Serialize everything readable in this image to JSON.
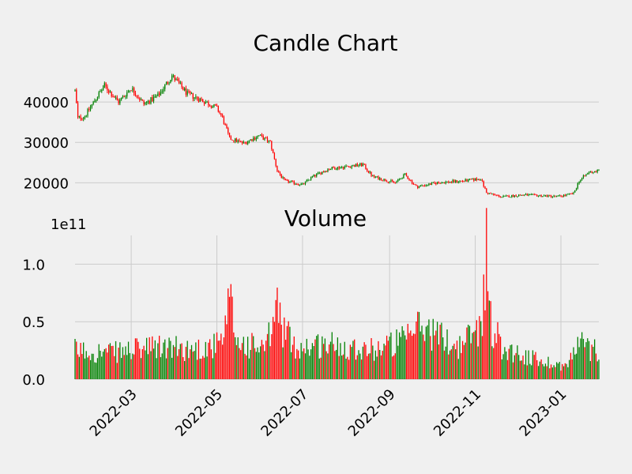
{
  "chart_data": [
    {
      "type": "candlestick",
      "title": "Candle Chart",
      "x_range": [
        "2022-01-20",
        "2023-01-28"
      ],
      "ylim": [
        14000,
        50000
      ],
      "yticks": [
        20000,
        30000,
        40000
      ],
      "ytick_labels": [
        "20000",
        "30000",
        "40000"
      ],
      "grid": "horizontal",
      "colors": {
        "up": "#008000",
        "down": "#ff0000"
      },
      "ohlc_points": [
        {
          "date": "2022-01-20",
          "value": 43000
        },
        {
          "date": "2022-01-22",
          "value": 36000
        },
        {
          "date": "2022-01-27",
          "value": 36500
        },
        {
          "date": "2022-02-05",
          "value": 41500
        },
        {
          "date": "2022-02-10",
          "value": 44000
        },
        {
          "date": "2022-02-20",
          "value": 40000
        },
        {
          "date": "2022-03-01",
          "value": 43500
        },
        {
          "date": "2022-03-10",
          "value": 39500
        },
        {
          "date": "2022-03-20",
          "value": 41500
        },
        {
          "date": "2022-03-30",
          "value": 46500
        },
        {
          "date": "2022-04-10",
          "value": 42000
        },
        {
          "date": "2022-04-20",
          "value": 40500
        },
        {
          "date": "2022-05-01",
          "value": 38500
        },
        {
          "date": "2022-05-05",
          "value": 36000
        },
        {
          "date": "2022-05-10",
          "value": 31000
        },
        {
          "date": "2022-05-20",
          "value": 29800
        },
        {
          "date": "2022-05-31",
          "value": 31700
        },
        {
          "date": "2022-06-08",
          "value": 30000
        },
        {
          "date": "2022-06-13",
          "value": 23000
        },
        {
          "date": "2022-06-18",
          "value": 20500
        },
        {
          "date": "2022-07-01",
          "value": 19500
        },
        {
          "date": "2022-07-08",
          "value": 21500
        },
        {
          "date": "2022-07-20",
          "value": 23500
        },
        {
          "date": "2022-08-13",
          "value": 24500
        },
        {
          "date": "2022-08-20",
          "value": 21500
        },
        {
          "date": "2022-09-05",
          "value": 20000
        },
        {
          "date": "2022-09-12",
          "value": 22000
        },
        {
          "date": "2022-09-20",
          "value": 19000
        },
        {
          "date": "2022-10-05",
          "value": 20000
        },
        {
          "date": "2022-10-25",
          "value": 20500
        },
        {
          "date": "2022-11-05",
          "value": 21000
        },
        {
          "date": "2022-11-09",
          "value": 17500
        },
        {
          "date": "2022-11-20",
          "value": 16500
        },
        {
          "date": "2022-12-05",
          "value": 17000
        },
        {
          "date": "2022-12-30",
          "value": 16600
        },
        {
          "date": "2023-01-10",
          "value": 17300
        },
        {
          "date": "2023-01-14",
          "value": 20500
        },
        {
          "date": "2023-01-21",
          "value": 22600
        },
        {
          "date": "2023-01-28",
          "value": 23000
        }
      ]
    },
    {
      "type": "bar",
      "title": "Volume",
      "scale_label": "1e11",
      "ylim": [
        0,
        1.25
      ],
      "yticks": [
        0,
        0.5,
        1.0
      ],
      "ytick_labels": [
        "0.0",
        "0.5",
        "1.0"
      ],
      "xtick_dates": [
        "2022-03-01",
        "2022-05-01",
        "2022-07-01",
        "2022-09-01",
        "2022-11-01",
        "2023-01-01"
      ],
      "xtick_labels": [
        "2022-03",
        "2022-05",
        "2022-07",
        "2022-09",
        "2022-11",
        "2023-01"
      ],
      "grid": "both",
      "colors": {
        "up": "#008000",
        "down": "#ff0000"
      },
      "volume_points": [
        {
          "date": "2022-01-20",
          "value": 0.27
        },
        {
          "date": "2022-02-15",
          "value": 0.25
        },
        {
          "date": "2022-03-20",
          "value": 0.3
        },
        {
          "date": "2022-04-15",
          "value": 0.28
        },
        {
          "date": "2022-05-05",
          "value": 0.33
        },
        {
          "date": "2022-05-09",
          "value": 0.62
        },
        {
          "date": "2022-05-11",
          "value": 0.7
        },
        {
          "date": "2022-05-15",
          "value": 0.35
        },
        {
          "date": "2022-06-05",
          "value": 0.28
        },
        {
          "date": "2022-06-13",
          "value": 0.68
        },
        {
          "date": "2022-06-16",
          "value": 0.52
        },
        {
          "date": "2022-06-25",
          "value": 0.3
        },
        {
          "date": "2022-07-20",
          "value": 0.33
        },
        {
          "date": "2022-08-20",
          "value": 0.28
        },
        {
          "date": "2022-09-15",
          "value": 0.38
        },
        {
          "date": "2022-09-20",
          "value": 0.5
        },
        {
          "date": "2022-10-01",
          "value": 0.45
        },
        {
          "date": "2022-10-20",
          "value": 0.3
        },
        {
          "date": "2022-11-05",
          "value": 0.5
        },
        {
          "date": "2022-11-09",
          "value": 1.2
        },
        {
          "date": "2022-11-10",
          "value": 0.85
        },
        {
          "date": "2022-11-12",
          "value": 0.55
        },
        {
          "date": "2022-11-20",
          "value": 0.3
        },
        {
          "date": "2022-12-10",
          "value": 0.2
        },
        {
          "date": "2023-01-05",
          "value": 0.12
        },
        {
          "date": "2023-01-14",
          "value": 0.35
        },
        {
          "date": "2023-01-22",
          "value": 0.28
        }
      ]
    }
  ]
}
